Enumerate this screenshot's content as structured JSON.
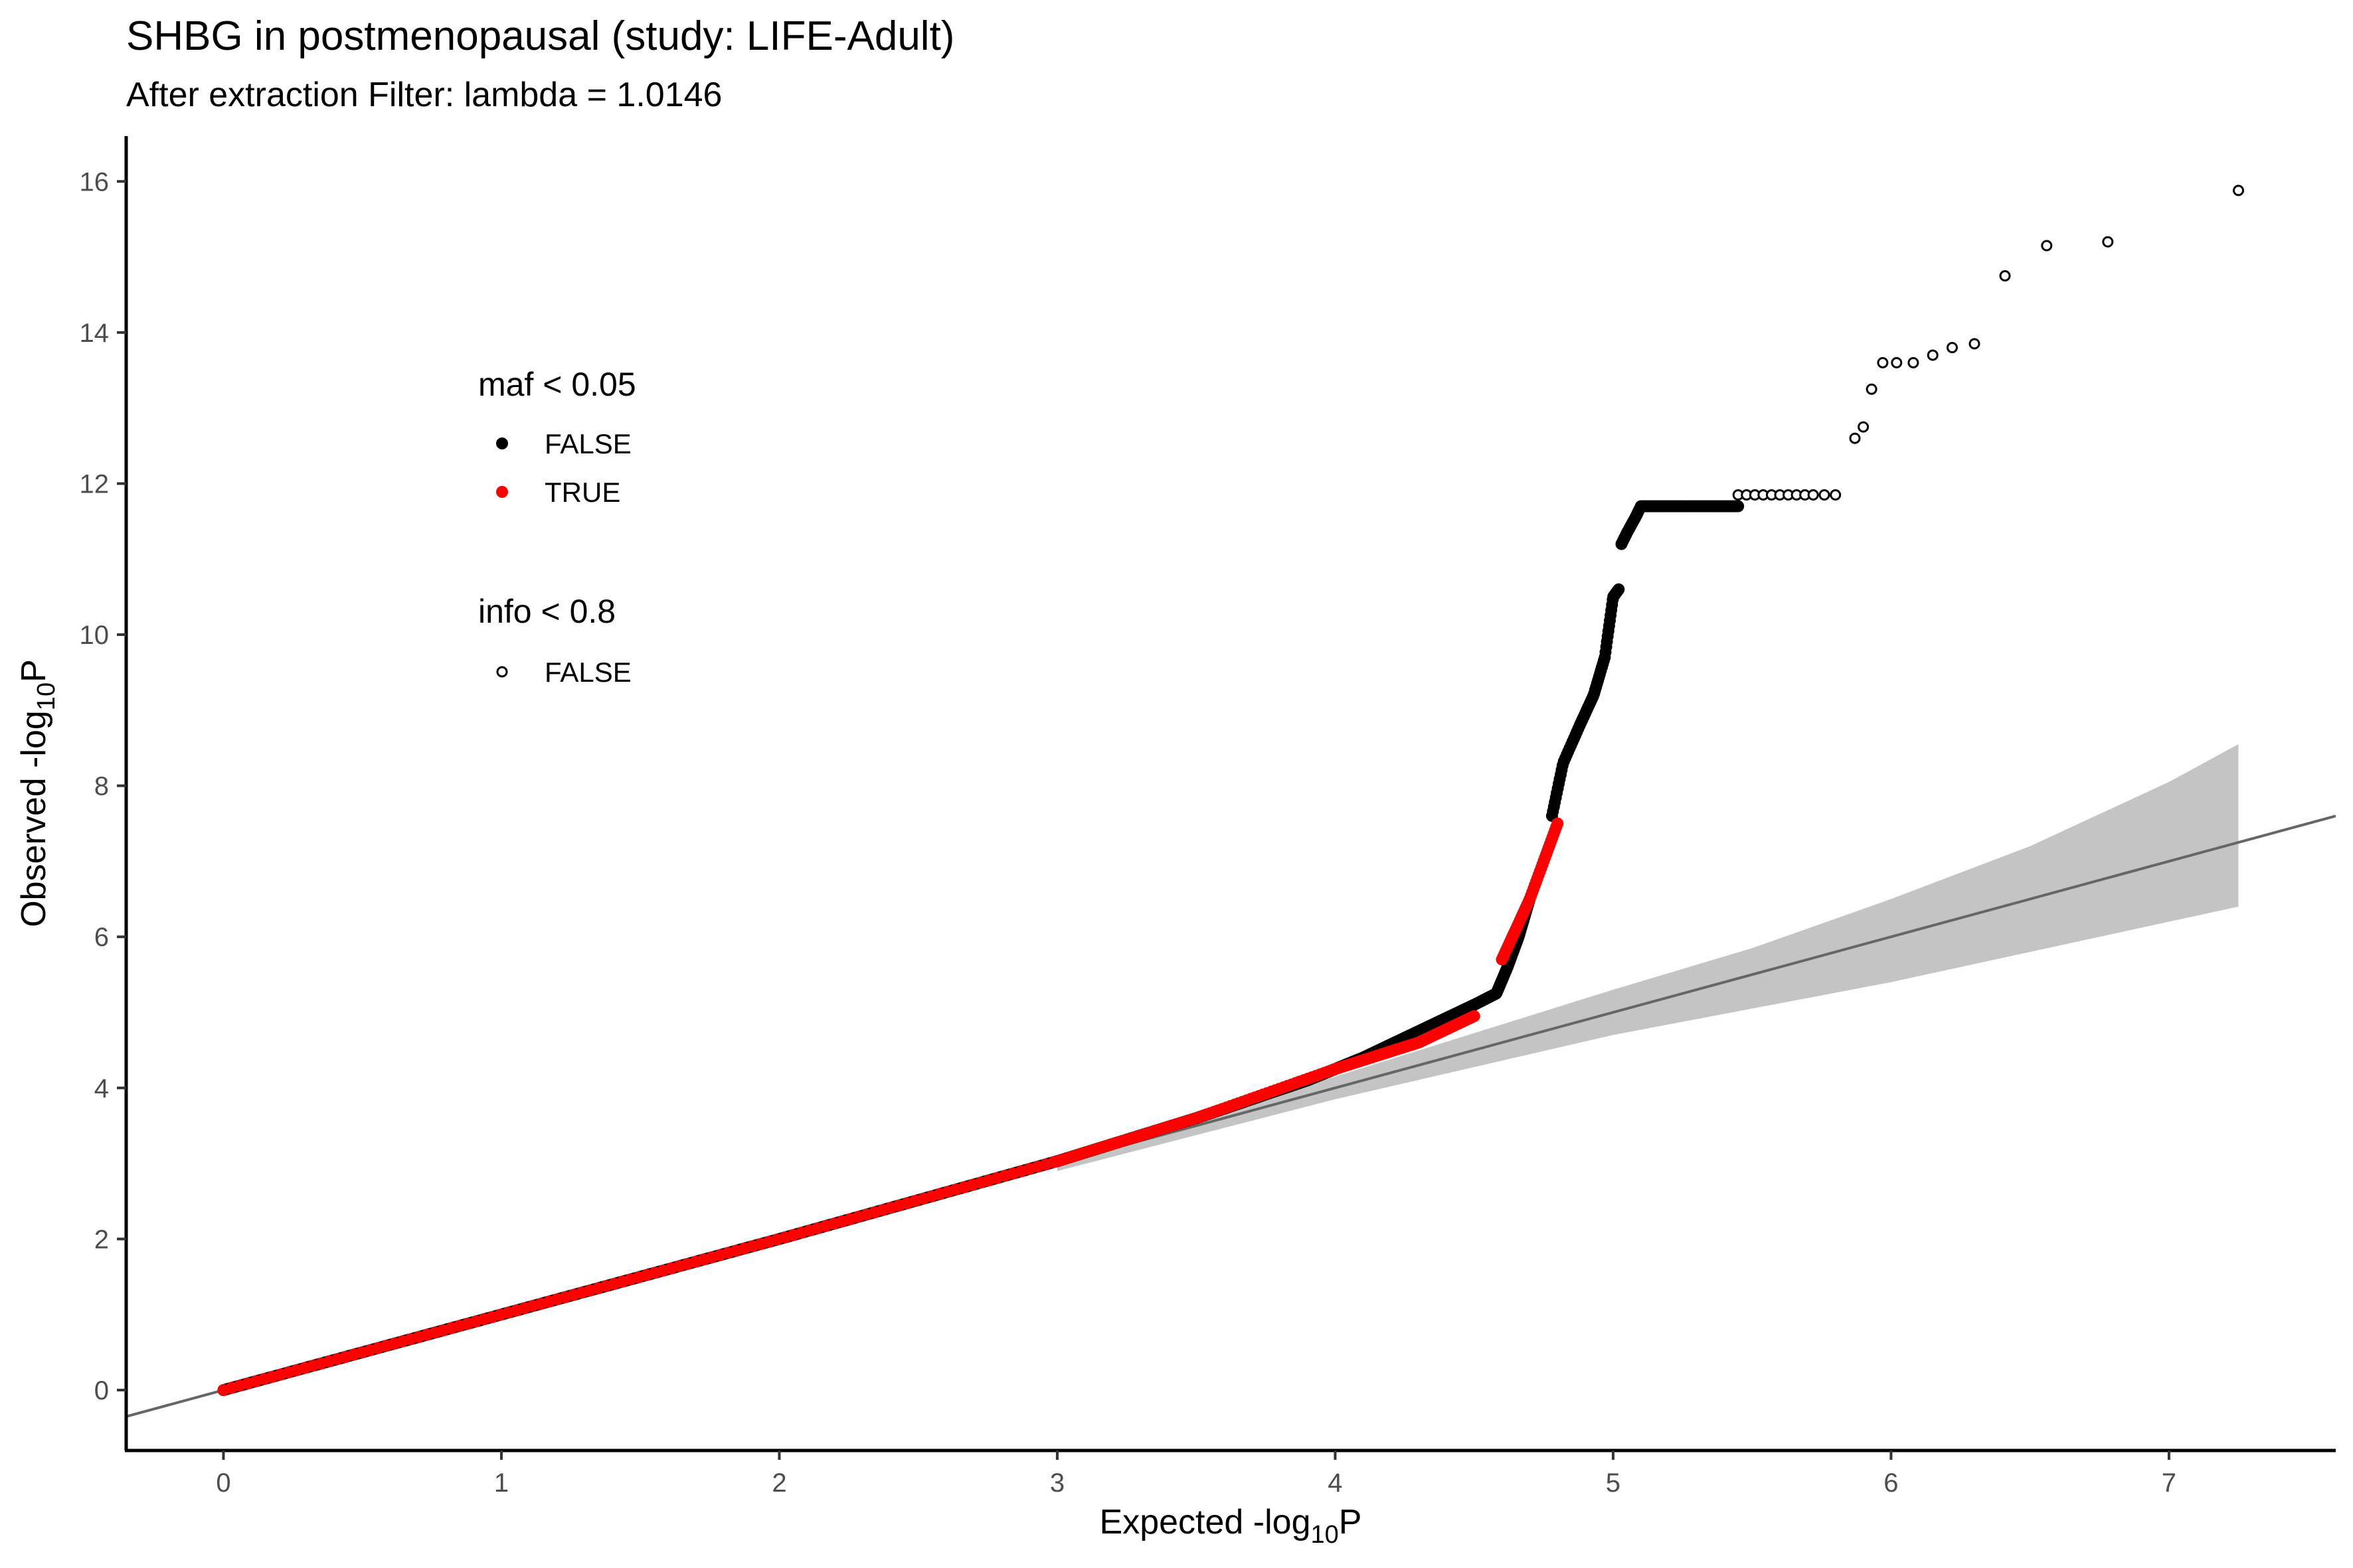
{
  "chart_data": {
    "type": "scatter",
    "title": "SHBG in postmenopausal (study: LIFE-Adult)",
    "subtitle": "After extraction Filter: lambda =  1.0146",
    "xlabel_main": "Expected -log",
    "xlabel_sub": "10",
    "xlabel_tail": "P",
    "ylabel_main": "Observed -log",
    "ylabel_sub": "10",
    "ylabel_tail": "P",
    "xlim": [
      -0.35,
      7.6
    ],
    "ylim": [
      -0.8,
      16.6
    ],
    "xticks": [
      0,
      1,
      2,
      3,
      4,
      5,
      6,
      7
    ],
    "yticks": [
      0,
      2,
      4,
      6,
      8,
      10,
      12,
      14,
      16
    ],
    "xtick_labels": [
      "0",
      "1",
      "2",
      "3",
      "4",
      "5",
      "6",
      "7"
    ],
    "ytick_labels": [
      "0",
      "2",
      "4",
      "6",
      "8",
      "10",
      "12",
      "14",
      "16"
    ],
    "grid": false,
    "reference_line": {
      "slope": 1,
      "intercept": 0
    },
    "confidence_band": {
      "x": [
        3.0,
        4.0,
        5.0,
        5.5,
        6.0,
        6.5,
        7.0,
        7.25
      ],
      "lower": [
        2.9,
        3.85,
        4.7,
        5.05,
        5.4,
        5.8,
        6.2,
        6.4
      ],
      "upper": [
        3.1,
        4.15,
        5.3,
        5.85,
        6.5,
        7.2,
        8.05,
        8.55
      ]
    },
    "series": [
      {
        "name": "FALSE",
        "legend_group": "maf < 0.05",
        "color": "#000000",
        "marker": "filled",
        "segments": [
          {
            "x": [
              0.0,
              1.0,
              2.0,
              3.0,
              3.5,
              3.9,
              4.1,
              4.3,
              4.5
            ],
            "y": [
              0.0,
              1.0,
              2.0,
              3.03,
              3.6,
              4.1,
              4.4,
              4.75,
              5.1
            ],
            "n": 900
          },
          {
            "x": [
              4.5,
              4.58,
              4.62,
              4.66,
              4.7
            ],
            "y": [
              5.1,
              5.25,
              5.6,
              6.0,
              6.5
            ],
            "n": 90
          },
          {
            "x": [
              4.78,
              4.82,
              4.88,
              4.93,
              4.97,
              5.0,
              5.02
            ],
            "y": [
              7.6,
              8.3,
              8.8,
              9.2,
              9.7,
              10.5,
              10.6
            ],
            "n": 70
          },
          {
            "x": [
              5.03,
              5.05,
              5.08,
              5.1
            ],
            "y": [
              11.2,
              11.35,
              11.55,
              11.7
            ],
            "n": 20
          },
          {
            "x": [
              5.1,
              5.45
            ],
            "y": [
              11.7,
              11.7
            ],
            "n": 70
          }
        ]
      },
      {
        "name": "TRUE",
        "legend_group": "maf < 0.05",
        "color": "#ff0000",
        "marker": "filled",
        "segments": [
          {
            "x": [
              0.0,
              1.0,
              2.0,
              3.0,
              3.5,
              4.0,
              4.3,
              4.5
            ],
            "y": [
              0.0,
              1.0,
              2.0,
              3.03,
              3.6,
              4.25,
              4.6,
              4.95
            ],
            "n": 240
          },
          {
            "x": [
              4.6,
              4.65,
              4.7,
              4.75,
              4.8
            ],
            "y": [
              5.7,
              6.1,
              6.5,
              7.0,
              7.5
            ],
            "n": 45
          }
        ]
      },
      {
        "name": "FALSE",
        "legend_group": "info < 0.8",
        "color": "#000000",
        "marker": "hollow",
        "points_x": [
          5.45,
          5.48,
          5.51,
          5.54,
          5.57,
          5.6,
          5.63,
          5.66,
          5.69,
          5.72,
          5.76,
          5.8,
          5.87,
          5.9,
          5.93,
          5.97,
          6.02,
          6.08,
          6.15,
          6.22,
          6.3,
          6.41,
          6.56,
          6.78,
          7.25
        ],
        "points_y": [
          11.85,
          11.85,
          11.85,
          11.85,
          11.85,
          11.85,
          11.85,
          11.85,
          11.85,
          11.85,
          11.85,
          11.85,
          12.6,
          12.75,
          13.25,
          13.6,
          13.6,
          13.6,
          13.7,
          13.8,
          13.85,
          14.75,
          15.15,
          15.2,
          15.88
        ]
      }
    ],
    "legend": {
      "placement": "top-left-inside",
      "groups": [
        {
          "title": "maf < 0.05",
          "entries": [
            {
              "label": "FALSE",
              "color": "#000000",
              "marker": "filled"
            },
            {
              "label": "TRUE",
              "color": "#ff0000",
              "marker": "filled"
            }
          ]
        },
        {
          "title": "info < 0.8",
          "entries": [
            {
              "label": "FALSE",
              "color": "#000000",
              "marker": "hollow"
            }
          ]
        }
      ]
    }
  }
}
